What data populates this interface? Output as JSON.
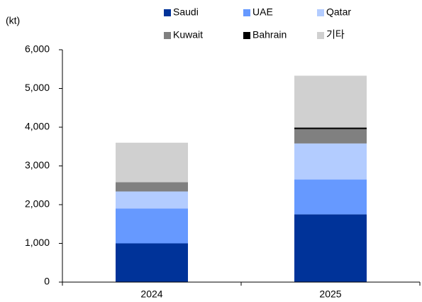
{
  "chart_data": {
    "type": "stacked_bar",
    "y_label": "(kt)",
    "categories": [
      "2024",
      "2025"
    ],
    "series": [
      {
        "name": "Saudi",
        "color": "#003399",
        "values": [
          1000,
          1750
        ]
      },
      {
        "name": "UAE",
        "color": "#6699ff",
        "values": [
          900,
          900
        ]
      },
      {
        "name": "Qatar",
        "color": "#b3ccff",
        "values": [
          440,
          930
        ]
      },
      {
        "name": "Kuwait",
        "color": "#808080",
        "values": [
          240,
          370
        ]
      },
      {
        "name": "Bahrain",
        "color": "#000000",
        "values": [
          0,
          40
        ]
      },
      {
        "name": "기타",
        "color": "#d0d0d0",
        "values": [
          1020,
          1340
        ]
      }
    ],
    "ylim": [
      0,
      6000
    ],
    "yticks": [
      0,
      {
        "value": 1000,
        "label": "1,000"
      },
      {
        "value": 2000,
        "label": "2,000"
      },
      {
        "value": 3000,
        "label": "3,000"
      },
      {
        "value": 4000,
        "label": "4,000"
      },
      {
        "value": 5000,
        "label": "5,000"
      },
      {
        "value": 6000,
        "label": "6,000"
      }
    ],
    "grid": false
  }
}
